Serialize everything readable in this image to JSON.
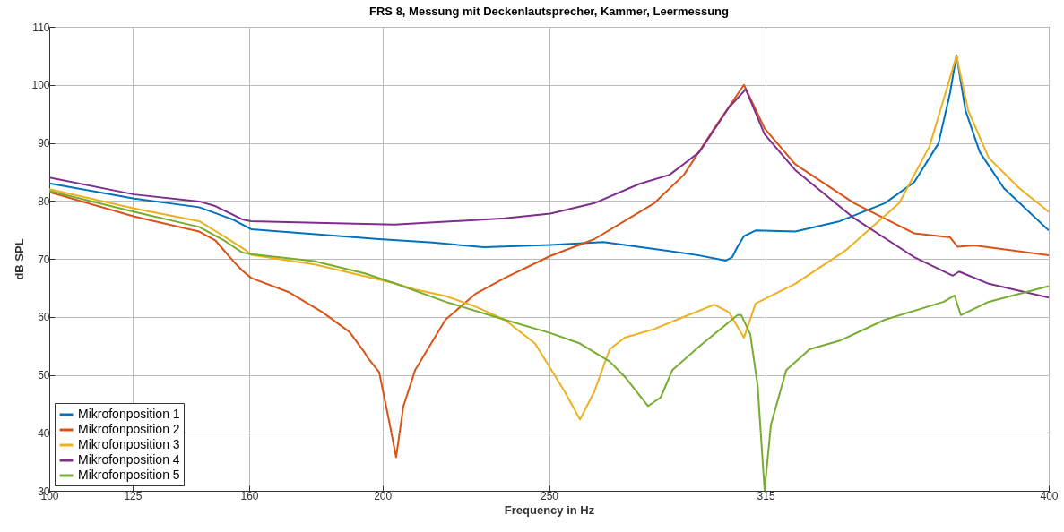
{
  "chart_data": {
    "type": "line",
    "title": "FRS 8, Messung mit Deckenlautsprecher, Kammer, Leermessung",
    "xlabel": "Frequency in Hz",
    "ylabel": "dB SPL",
    "xlim": [
      100,
      400
    ],
    "xticks": [
      100,
      125,
      160,
      200,
      250,
      315,
      400
    ],
    "ylim": [
      30,
      110
    ],
    "yticks": [
      30,
      40,
      50,
      60,
      70,
      80,
      90,
      100,
      110
    ],
    "grid": true,
    "legend": "bottom left",
    "line_style": "solid",
    "series": [
      {
        "name": "Mikrofonposition 1",
        "color": "#0072bd",
        "x": [
          100,
          125.5,
          145,
          155,
          160.6,
          179,
          199,
          215,
          230.5,
          250.4,
          266.3,
          281.6,
          295,
          303.1,
          305,
          306.5,
          308.5,
          312,
          323.9,
          337.3,
          350.8,
          359.6,
          366.9,
          370.4,
          372.3,
          375,
          379.3,
          386.5,
          400
        ],
        "values": [
          83,
          80.4,
          78.9,
          76.8,
          75.1,
          74.3,
          73.4,
          72.8,
          72,
          72.4,
          72.9,
          71.7,
          70.6,
          69.7,
          70.3,
          72,
          73.9,
          74.9,
          74.7,
          76.5,
          79.6,
          83.2,
          89.9,
          98.7,
          105.1,
          95.6,
          88.4,
          82.2,
          74.9
        ]
      },
      {
        "name": "Mikrofonposition 2",
        "color": "#d95319",
        "x": [
          100,
          125.5,
          145,
          149.8,
          155.7,
          157.9,
          160.6,
          172.1,
          182,
          190.1,
          194.7,
          195.5,
          199,
          202,
          204.1,
          206.3,
          209.8,
          218.9,
          227.8,
          236.7,
          250.4,
          263.6,
          281.6,
          290.5,
          299.6,
          308.5,
          314.7,
          323.9,
          341.6,
          359.6,
          370.4,
          372.6,
          377.7,
          400
        ],
        "values": [
          81.5,
          77.3,
          74.7,
          73.2,
          69.3,
          68,
          66.7,
          64.2,
          60.8,
          57.4,
          53.8,
          53,
          50.5,
          42,
          35.8,
          44.6,
          50.8,
          59.5,
          63.9,
          66.7,
          70.5,
          73.4,
          79.6,
          84.5,
          92.5,
          100,
          92.5,
          86.3,
          79.6,
          74.4,
          73.7,
          72.1,
          72.3,
          70.6
        ]
      },
      {
        "name": "Mikrofonposition 3",
        "color": "#edb120",
        "x": [
          100,
          125.5,
          145,
          152.4,
          159.2,
          160.6,
          180,
          203.6,
          209.8,
          218.9,
          227.8,
          236.7,
          245.8,
          254.7,
          259.3,
          263.6,
          268.2,
          272.7,
          281.6,
          290.5,
          299.6,
          304,
          308.5,
          312,
          323.9,
          338.9,
          355.1,
          364.2,
          368.5,
          372.3,
          375.8,
          382,
          391.1,
          400
        ],
        "values": [
          82,
          78.7,
          76.5,
          73.9,
          71.4,
          70.7,
          69,
          65.8,
          64.7,
          63.6,
          61.8,
          59.5,
          55.4,
          47.1,
          42.3,
          47.1,
          54.4,
          56.4,
          57.9,
          60,
          62.1,
          60.8,
          56.4,
          62.3,
          65.7,
          71.4,
          79.6,
          89.4,
          97.6,
          105,
          95.6,
          87.4,
          82.2,
          78.1
        ]
      },
      {
        "name": "Mikrofonposition 4",
        "color": "#7e2f8e",
        "x": [
          100,
          125.5,
          145,
          149.8,
          157.9,
          160.6,
          180,
          203.6,
          218.9,
          236.7,
          250.4,
          263.6,
          277,
          286.2,
          295.1,
          304,
          308.5,
          309,
          314.7,
          323.9,
          341.6,
          359.6,
          371.2,
          373.1,
          382,
          400
        ],
        "values": [
          84,
          81.1,
          79.9,
          79.1,
          76.8,
          76.5,
          76.2,
          75.9,
          76.4,
          77,
          77.8,
          79.6,
          82.9,
          84.5,
          88.4,
          96.1,
          98.9,
          99.3,
          91.5,
          85.3,
          77,
          70.3,
          67.1,
          67.8,
          65.7,
          63.3
        ]
      },
      {
        "name": "Mikrofonposition 5",
        "color": "#77ac30",
        "x": [
          100,
          125.5,
          145,
          152.4,
          157.9,
          160.6,
          179.4,
          194.7,
          203.6,
          218.9,
          236.7,
          250.4,
          259.3,
          268.2,
          272.7,
          279.7,
          283.5,
          287,
          295.1,
          306.6,
          307.7,
          310.4,
          312.6,
          314.7,
          316.6,
          321.2,
          328.2,
          337.3,
          350.8,
          368.5,
          371.7,
          373.6,
          382,
          400
        ],
        "values": [
          81.7,
          78.1,
          75.5,
          73.2,
          71.1,
          70.8,
          69.6,
          67.5,
          65.8,
          62.6,
          59.5,
          57.2,
          55.4,
          52.3,
          49.7,
          44.6,
          46.1,
          50.8,
          54.9,
          60.3,
          60.3,
          57,
          48.2,
          30.1,
          41.4,
          50.8,
          54.4,
          55.9,
          59.5,
          62.6,
          63.7,
          60.3,
          62.6,
          65.3
        ]
      }
    ]
  }
}
